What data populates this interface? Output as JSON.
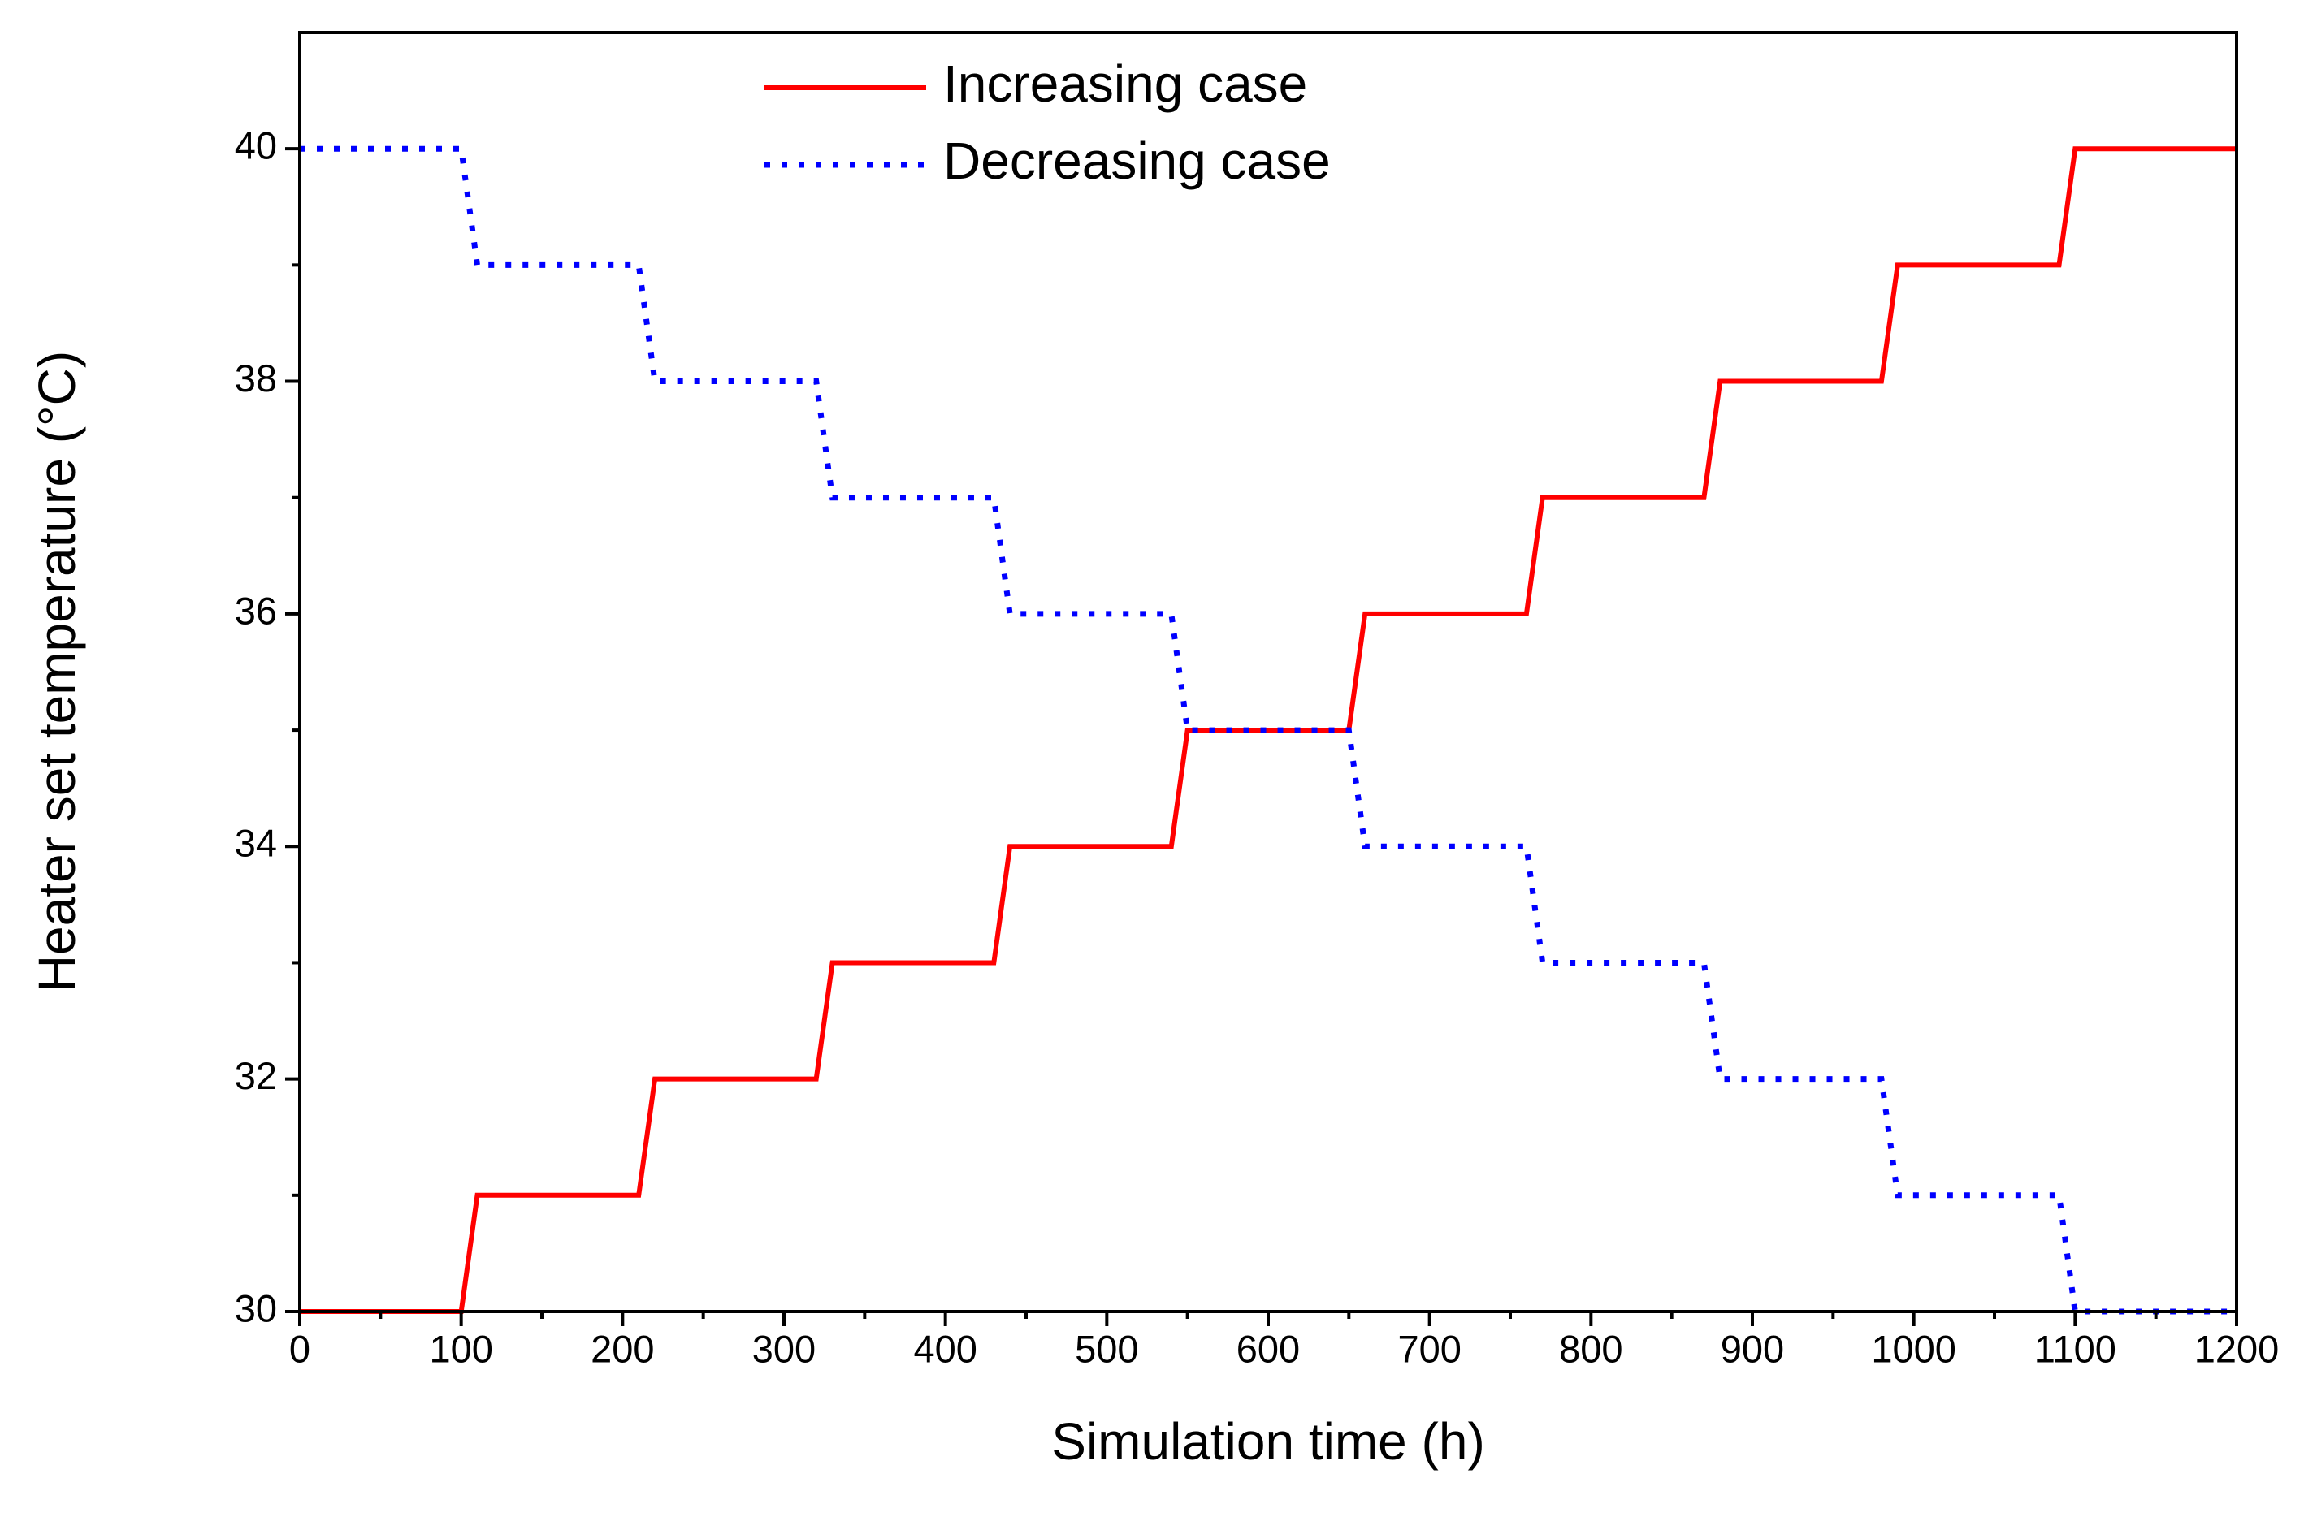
{
  "chart_data": {
    "type": "line",
    "x_label": "Simulation time (h)",
    "y_label": "Heater set temperature (°C)",
    "x": [
      0,
      100,
      110,
      210,
      220,
      320,
      330,
      430,
      440,
      540,
      550,
      650,
      660,
      760,
      770,
      870,
      880,
      980,
      990,
      1090,
      1100,
      1200
    ],
    "series": [
      {
        "name": "Increasing case",
        "color": "#ff0000",
        "line_style": "solid",
        "values": [
          30,
          30,
          31,
          31,
          32,
          32,
          33,
          33,
          34,
          34,
          35,
          35,
          36,
          36,
          37,
          37,
          38,
          38,
          39,
          39,
          40,
          40
        ]
      },
      {
        "name": "Decreasing case",
        "color": "#0000ff",
        "line_style": "dotted",
        "values": [
          40,
          40,
          39,
          39,
          38,
          38,
          37,
          37,
          36,
          36,
          35,
          35,
          34,
          34,
          33,
          33,
          32,
          32,
          31,
          31,
          30,
          30
        ]
      }
    ],
    "xlim": [
      0,
      1200
    ],
    "xticks": [
      0,
      100,
      200,
      300,
      400,
      500,
      600,
      700,
      800,
      900,
      1000,
      1100,
      1200
    ],
    "ylim": [
      30,
      41
    ],
    "yticks": [
      30,
      32,
      34,
      36,
      38,
      40
    ],
    "grid": false,
    "legend": "upper center"
  }
}
